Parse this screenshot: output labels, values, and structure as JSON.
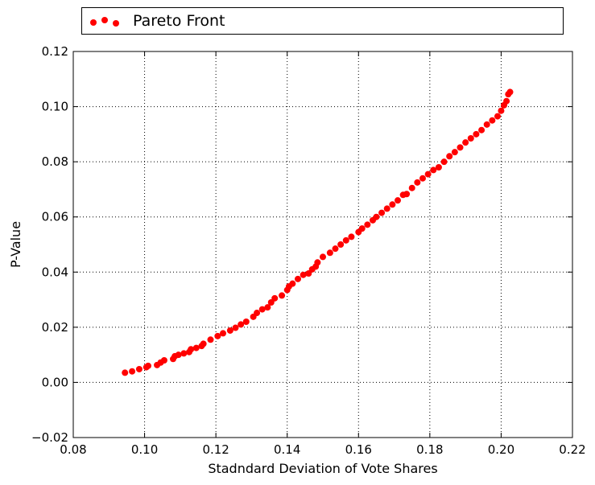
{
  "chart_data": {
    "type": "scatter",
    "xlabel": "Stadndard Deviation of Vote Shares",
    "ylabel": "P-Value",
    "xlim": [
      0.08,
      0.22
    ],
    "ylim": [
      -0.02,
      0.12
    ],
    "x_ticks": [
      "0.08",
      "0.10",
      "0.12",
      "0.14",
      "0.16",
      "0.18",
      "0.20",
      "0.22"
    ],
    "y_ticks": [
      "−0.02",
      "0.00",
      "0.02",
      "0.04",
      "0.06",
      "0.08",
      "0.10",
      "0.12"
    ],
    "grid": true,
    "legend": {
      "position": "top",
      "entries": [
        "Pareto Front"
      ]
    },
    "series": [
      {
        "name": "Pareto Front",
        "color": "#ff0000",
        "marker": "circle",
        "points": [
          [
            0.0945,
            0.0035
          ],
          [
            0.0965,
            0.004
          ],
          [
            0.0985,
            0.0048
          ],
          [
            0.1005,
            0.0055
          ],
          [
            0.101,
            0.006
          ],
          [
            0.1035,
            0.0063
          ],
          [
            0.1045,
            0.0072
          ],
          [
            0.1055,
            0.008
          ],
          [
            0.108,
            0.0085
          ],
          [
            0.1085,
            0.0095
          ],
          [
            0.1095,
            0.01
          ],
          [
            0.111,
            0.0105
          ],
          [
            0.1125,
            0.011
          ],
          [
            0.113,
            0.012
          ],
          [
            0.1145,
            0.0125
          ],
          [
            0.116,
            0.0132
          ],
          [
            0.1165,
            0.014
          ],
          [
            0.1185,
            0.0155
          ],
          [
            0.1205,
            0.0168
          ],
          [
            0.122,
            0.0178
          ],
          [
            0.124,
            0.0188
          ],
          [
            0.1255,
            0.0198
          ],
          [
            0.127,
            0.021
          ],
          [
            0.1285,
            0.022
          ],
          [
            0.1305,
            0.0238
          ],
          [
            0.1315,
            0.0252
          ],
          [
            0.133,
            0.0265
          ],
          [
            0.1345,
            0.0272
          ],
          [
            0.1355,
            0.029
          ],
          [
            0.1365,
            0.0305
          ],
          [
            0.1385,
            0.0315
          ],
          [
            0.14,
            0.0335
          ],
          [
            0.1405,
            0.0348
          ],
          [
            0.1415,
            0.0358
          ],
          [
            0.143,
            0.0375
          ],
          [
            0.1445,
            0.039
          ],
          [
            0.146,
            0.0395
          ],
          [
            0.147,
            0.041
          ],
          [
            0.148,
            0.042
          ],
          [
            0.1485,
            0.0435
          ],
          [
            0.15,
            0.0455
          ],
          [
            0.152,
            0.047
          ],
          [
            0.1535,
            0.0485
          ],
          [
            0.155,
            0.05
          ],
          [
            0.1565,
            0.0515
          ],
          [
            0.158,
            0.0528
          ],
          [
            0.16,
            0.0545
          ],
          [
            0.161,
            0.0558
          ],
          [
            0.1625,
            0.0572
          ],
          [
            0.164,
            0.0588
          ],
          [
            0.165,
            0.06
          ],
          [
            0.1665,
            0.0615
          ],
          [
            0.168,
            0.063
          ],
          [
            0.1695,
            0.0645
          ],
          [
            0.171,
            0.066
          ],
          [
            0.1725,
            0.068
          ],
          [
            0.1735,
            0.0683
          ],
          [
            0.175,
            0.0705
          ],
          [
            0.1765,
            0.0725
          ],
          [
            0.178,
            0.074
          ],
          [
            0.1795,
            0.0755
          ],
          [
            0.181,
            0.077
          ],
          [
            0.1825,
            0.078
          ],
          [
            0.184,
            0.08
          ],
          [
            0.1855,
            0.082
          ],
          [
            0.187,
            0.0835
          ],
          [
            0.1885,
            0.0852
          ],
          [
            0.19,
            0.087
          ],
          [
            0.1915,
            0.0885
          ],
          [
            0.193,
            0.09
          ],
          [
            0.1945,
            0.0915
          ],
          [
            0.196,
            0.0935
          ],
          [
            0.1975,
            0.095
          ],
          [
            0.199,
            0.0965
          ],
          [
            0.2,
            0.0985
          ],
          [
            0.2008,
            0.1005
          ],
          [
            0.2015,
            0.102
          ],
          [
            0.202,
            0.1045
          ],
          [
            0.2025,
            0.1053
          ]
        ]
      }
    ]
  }
}
